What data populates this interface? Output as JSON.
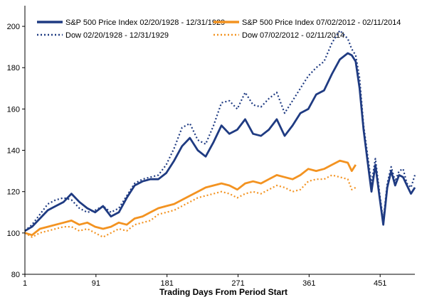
{
  "chart_data": {
    "type": "line",
    "title": "",
    "xlabel": "Trading Days From Period Start",
    "ylabel": "",
    "xlim": [
      1,
      495
    ],
    "ylim": [
      80,
      210
    ],
    "x_ticks": [
      1,
      91,
      181,
      271,
      361,
      451
    ],
    "y_ticks": [
      80,
      100,
      120,
      140,
      160,
      180,
      200
    ],
    "grid": false,
    "legend_position": "top",
    "series": [
      {
        "name": "S&P 500 Price Index 02/20/1928 - 12/31/1929",
        "color": "#1F3B82",
        "style": "solid",
        "x": [
          1,
          10,
          20,
          30,
          40,
          50,
          60,
          70,
          80,
          90,
          100,
          110,
          120,
          130,
          140,
          150,
          160,
          170,
          180,
          190,
          200,
          210,
          220,
          230,
          240,
          250,
          260,
          270,
          280,
          290,
          300,
          310,
          320,
          330,
          340,
          350,
          360,
          370,
          380,
          390,
          400,
          410,
          415,
          420,
          425,
          430,
          435,
          440,
          445,
          450,
          455,
          460,
          465,
          470,
          475,
          480,
          485,
          490,
          495
        ],
        "values": [
          101,
          103,
          107,
          111,
          113,
          115,
          119,
          115,
          112,
          110,
          113,
          108,
          110,
          117,
          123,
          125,
          126,
          126,
          129,
          135,
          142,
          146,
          140,
          137,
          144,
          152,
          148,
          150,
          155,
          148,
          147,
          150,
          155,
          147,
          152,
          158,
          160,
          167,
          169,
          177,
          184,
          187,
          186,
          183,
          170,
          150,
          135,
          120,
          133,
          118,
          104,
          122,
          130,
          123,
          128,
          127,
          123,
          119,
          122
        ]
      },
      {
        "name": "Dow 02/20/1928 - 12/31/1929",
        "color": "#1F3B82",
        "style": "dotted",
        "x": [
          1,
          10,
          20,
          30,
          40,
          50,
          60,
          70,
          80,
          90,
          100,
          110,
          120,
          130,
          140,
          150,
          160,
          170,
          180,
          190,
          200,
          210,
          220,
          230,
          240,
          250,
          260,
          270,
          280,
          290,
          300,
          310,
          320,
          330,
          340,
          350,
          360,
          370,
          380,
          390,
          400,
          410,
          415,
          420,
          425,
          430,
          435,
          440,
          445,
          450,
          455,
          460,
          465,
          470,
          475,
          480,
          485,
          490,
          495
        ],
        "values": [
          101,
          104,
          109,
          114,
          116,
          117,
          116,
          112,
          110,
          111,
          113,
          110,
          112,
          118,
          124,
          126,
          127,
          128,
          133,
          141,
          151,
          153,
          145,
          143,
          152,
          163,
          164,
          160,
          168,
          162,
          161,
          165,
          168,
          158,
          164,
          170,
          176,
          180,
          183,
          192,
          198,
          194,
          189,
          186,
          175,
          152,
          138,
          124,
          136,
          120,
          106,
          124,
          132,
          125,
          130,
          131,
          124,
          122,
          128
        ]
      },
      {
        "name": "S&P 500 Price Index 07/02/2012 - 02/11/2014",
        "color": "#F39321",
        "style": "solid",
        "x": [
          1,
          10,
          20,
          30,
          40,
          50,
          60,
          70,
          80,
          90,
          100,
          110,
          120,
          130,
          140,
          150,
          160,
          170,
          180,
          190,
          200,
          210,
          220,
          230,
          240,
          250,
          260,
          270,
          280,
          290,
          300,
          310,
          320,
          330,
          340,
          350,
          360,
          370,
          380,
          390,
          400,
          410,
          415,
          420
        ],
        "values": [
          100,
          99,
          102,
          103,
          104,
          105,
          106,
          104,
          105,
          103,
          102,
          103,
          105,
          104,
          107,
          108,
          110,
          112,
          113,
          114,
          116,
          118,
          120,
          122,
          123,
          124,
          123,
          121,
          124,
          125,
          124,
          126,
          128,
          127,
          126,
          128,
          131,
          130,
          131,
          133,
          135,
          134,
          130,
          133
        ]
      },
      {
        "name": "Dow 07/02/2012 - 02/11/2014",
        "color": "#F39321",
        "style": "dotted",
        "x": [
          1,
          10,
          20,
          30,
          40,
          50,
          60,
          70,
          80,
          90,
          100,
          110,
          120,
          130,
          140,
          150,
          160,
          170,
          180,
          190,
          200,
          210,
          220,
          230,
          240,
          250,
          260,
          270,
          280,
          290,
          300,
          310,
          320,
          330,
          340,
          350,
          360,
          370,
          380,
          390,
          400,
          410,
          415,
          420
        ],
        "values": [
          100,
          98,
          100,
          101,
          102,
          103,
          103,
          101,
          102,
          100,
          98,
          100,
          102,
          101,
          104,
          105,
          106,
          109,
          110,
          111,
          113,
          115,
          117,
          118,
          119,
          120,
          119,
          117,
          119,
          120,
          119,
          121,
          123,
          122,
          120,
          121,
          125,
          126,
          126,
          128,
          127,
          126,
          121,
          122
        ]
      }
    ]
  }
}
